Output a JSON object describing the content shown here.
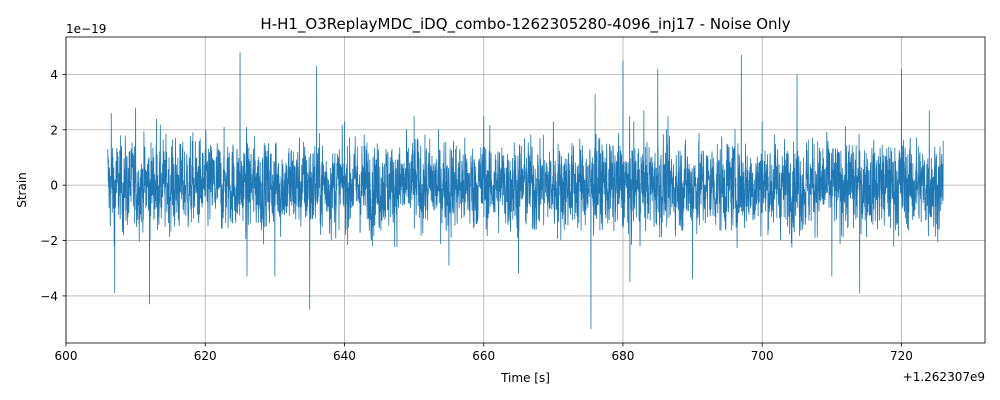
{
  "chart_data": {
    "type": "line",
    "title": "H-H1_O3ReplayMDC_iDQ_combo-1262305280-4096_inj17 - Noise Only",
    "xlabel": "Time [s]",
    "ylabel": "Strain",
    "x_offset_label": "+1.262307e9",
    "y_exponent_label": "1e−19",
    "xlim": [
      600,
      732
    ],
    "ylim": [
      -5.7,
      5.35
    ],
    "x_ticks": [
      600,
      620,
      640,
      660,
      680,
      700,
      720
    ],
    "x_tick_labels": [
      "600",
      "620",
      "640",
      "660",
      "680",
      "700",
      "720"
    ],
    "y_ticks": [
      -4,
      -2,
      0,
      2,
      4
    ],
    "y_tick_labels": [
      "−4",
      "−2",
      "0",
      "2",
      "4"
    ],
    "grid": true,
    "line_color": "#1f77b4",
    "series": [
      {
        "x": [
          606,
          606.5,
          607,
          610,
          612,
          613,
          625,
          626,
          630,
          635,
          636,
          640,
          644,
          650,
          655,
          660,
          665,
          670,
          675.4,
          676,
          680,
          681,
          683,
          685,
          690,
          697,
          700,
          705,
          710,
          714,
          720,
          724,
          726
        ],
        "values": [
          1.3,
          2.6,
          -3.9,
          2.8,
          -4.3,
          2.4,
          4.8,
          -3.3,
          -3.3,
          -4.5,
          4.3,
          2.3,
          -2.2,
          2.5,
          -2.9,
          2.5,
          -3.2,
          2.3,
          -5.2,
          3.3,
          4.5,
          -3.5,
          2.7,
          4.2,
          -3.4,
          4.7,
          2.3,
          4.0,
          -3.3,
          -3.9,
          4.2,
          2.7,
          1.6
        ]
      }
    ]
  }
}
